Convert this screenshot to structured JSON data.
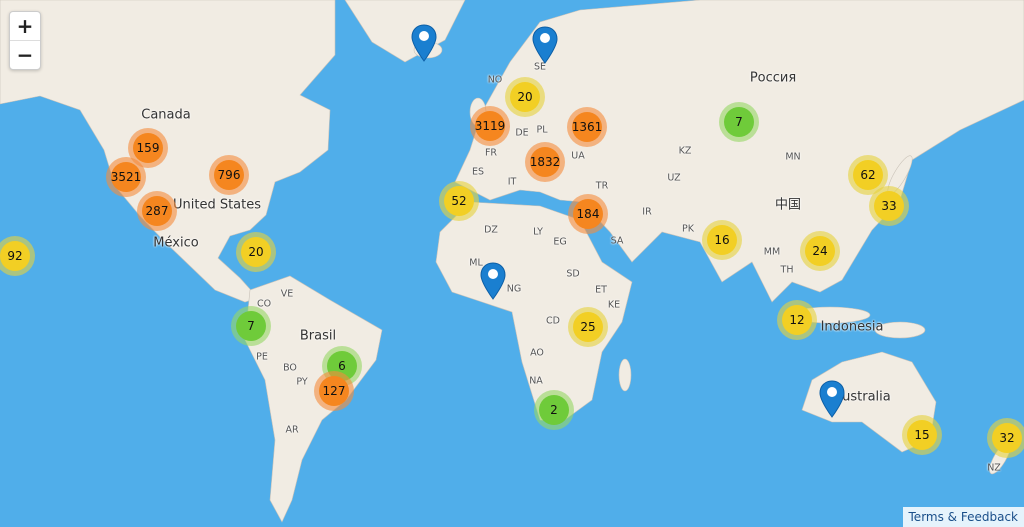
{
  "map": {
    "ocean_color": "#50aeea",
    "land_color": "#f1ece3",
    "zoom_in_label": "+",
    "zoom_out_label": "−",
    "attribution": "Terms & Feedback",
    "cluster_colors": {
      "large": "#f5861f",
      "medium": "#f2cf24",
      "small": "#6fcb3a"
    },
    "labels": [
      "Canada",
      "United States",
      "México",
      "Россия",
      "中国",
      "Australia",
      "Brasil",
      "Indonesia",
      "NO",
      "SE",
      "DE",
      "PL",
      "UA",
      "FR",
      "IT",
      "ES",
      "TR",
      "KZ",
      "MN",
      "UZ",
      "IR",
      "PK",
      "EG",
      "LY",
      "DZ",
      "SA",
      "MM",
      "TH",
      "SD",
      "ET",
      "CD",
      "KE",
      "AO",
      "NA",
      "CO",
      "VE",
      "PE",
      "BO",
      "PY",
      "AR",
      "NZ",
      "ML",
      "NG"
    ],
    "clusters": [
      {
        "count": "159",
        "size": "large"
      },
      {
        "count": "3521",
        "size": "large"
      },
      {
        "count": "796",
        "size": "large"
      },
      {
        "count": "287",
        "size": "large"
      },
      {
        "count": "92",
        "size": "medium"
      },
      {
        "count": "20",
        "size": "medium"
      },
      {
        "count": "7",
        "size": "small"
      },
      {
        "count": "6",
        "size": "small"
      },
      {
        "count": "127",
        "size": "large"
      },
      {
        "count": "3119",
        "size": "large"
      },
      {
        "count": "20",
        "size": "medium"
      },
      {
        "count": "1361",
        "size": "large"
      },
      {
        "count": "1832",
        "size": "large"
      },
      {
        "count": "52",
        "size": "medium"
      },
      {
        "count": "184",
        "size": "large"
      },
      {
        "count": "25",
        "size": "medium"
      },
      {
        "count": "2",
        "size": "small"
      },
      {
        "count": "7",
        "size": "small"
      },
      {
        "count": "62",
        "size": "medium"
      },
      {
        "count": "33",
        "size": "medium"
      },
      {
        "count": "16",
        "size": "medium"
      },
      {
        "count": "24",
        "size": "medium"
      },
      {
        "count": "12",
        "size": "medium"
      },
      {
        "count": "15",
        "size": "medium"
      },
      {
        "count": "32",
        "size": "medium"
      }
    ],
    "markers": [
      "map-marker-icon",
      "map-marker-icon",
      "map-marker-icon",
      "map-marker-icon"
    ]
  }
}
